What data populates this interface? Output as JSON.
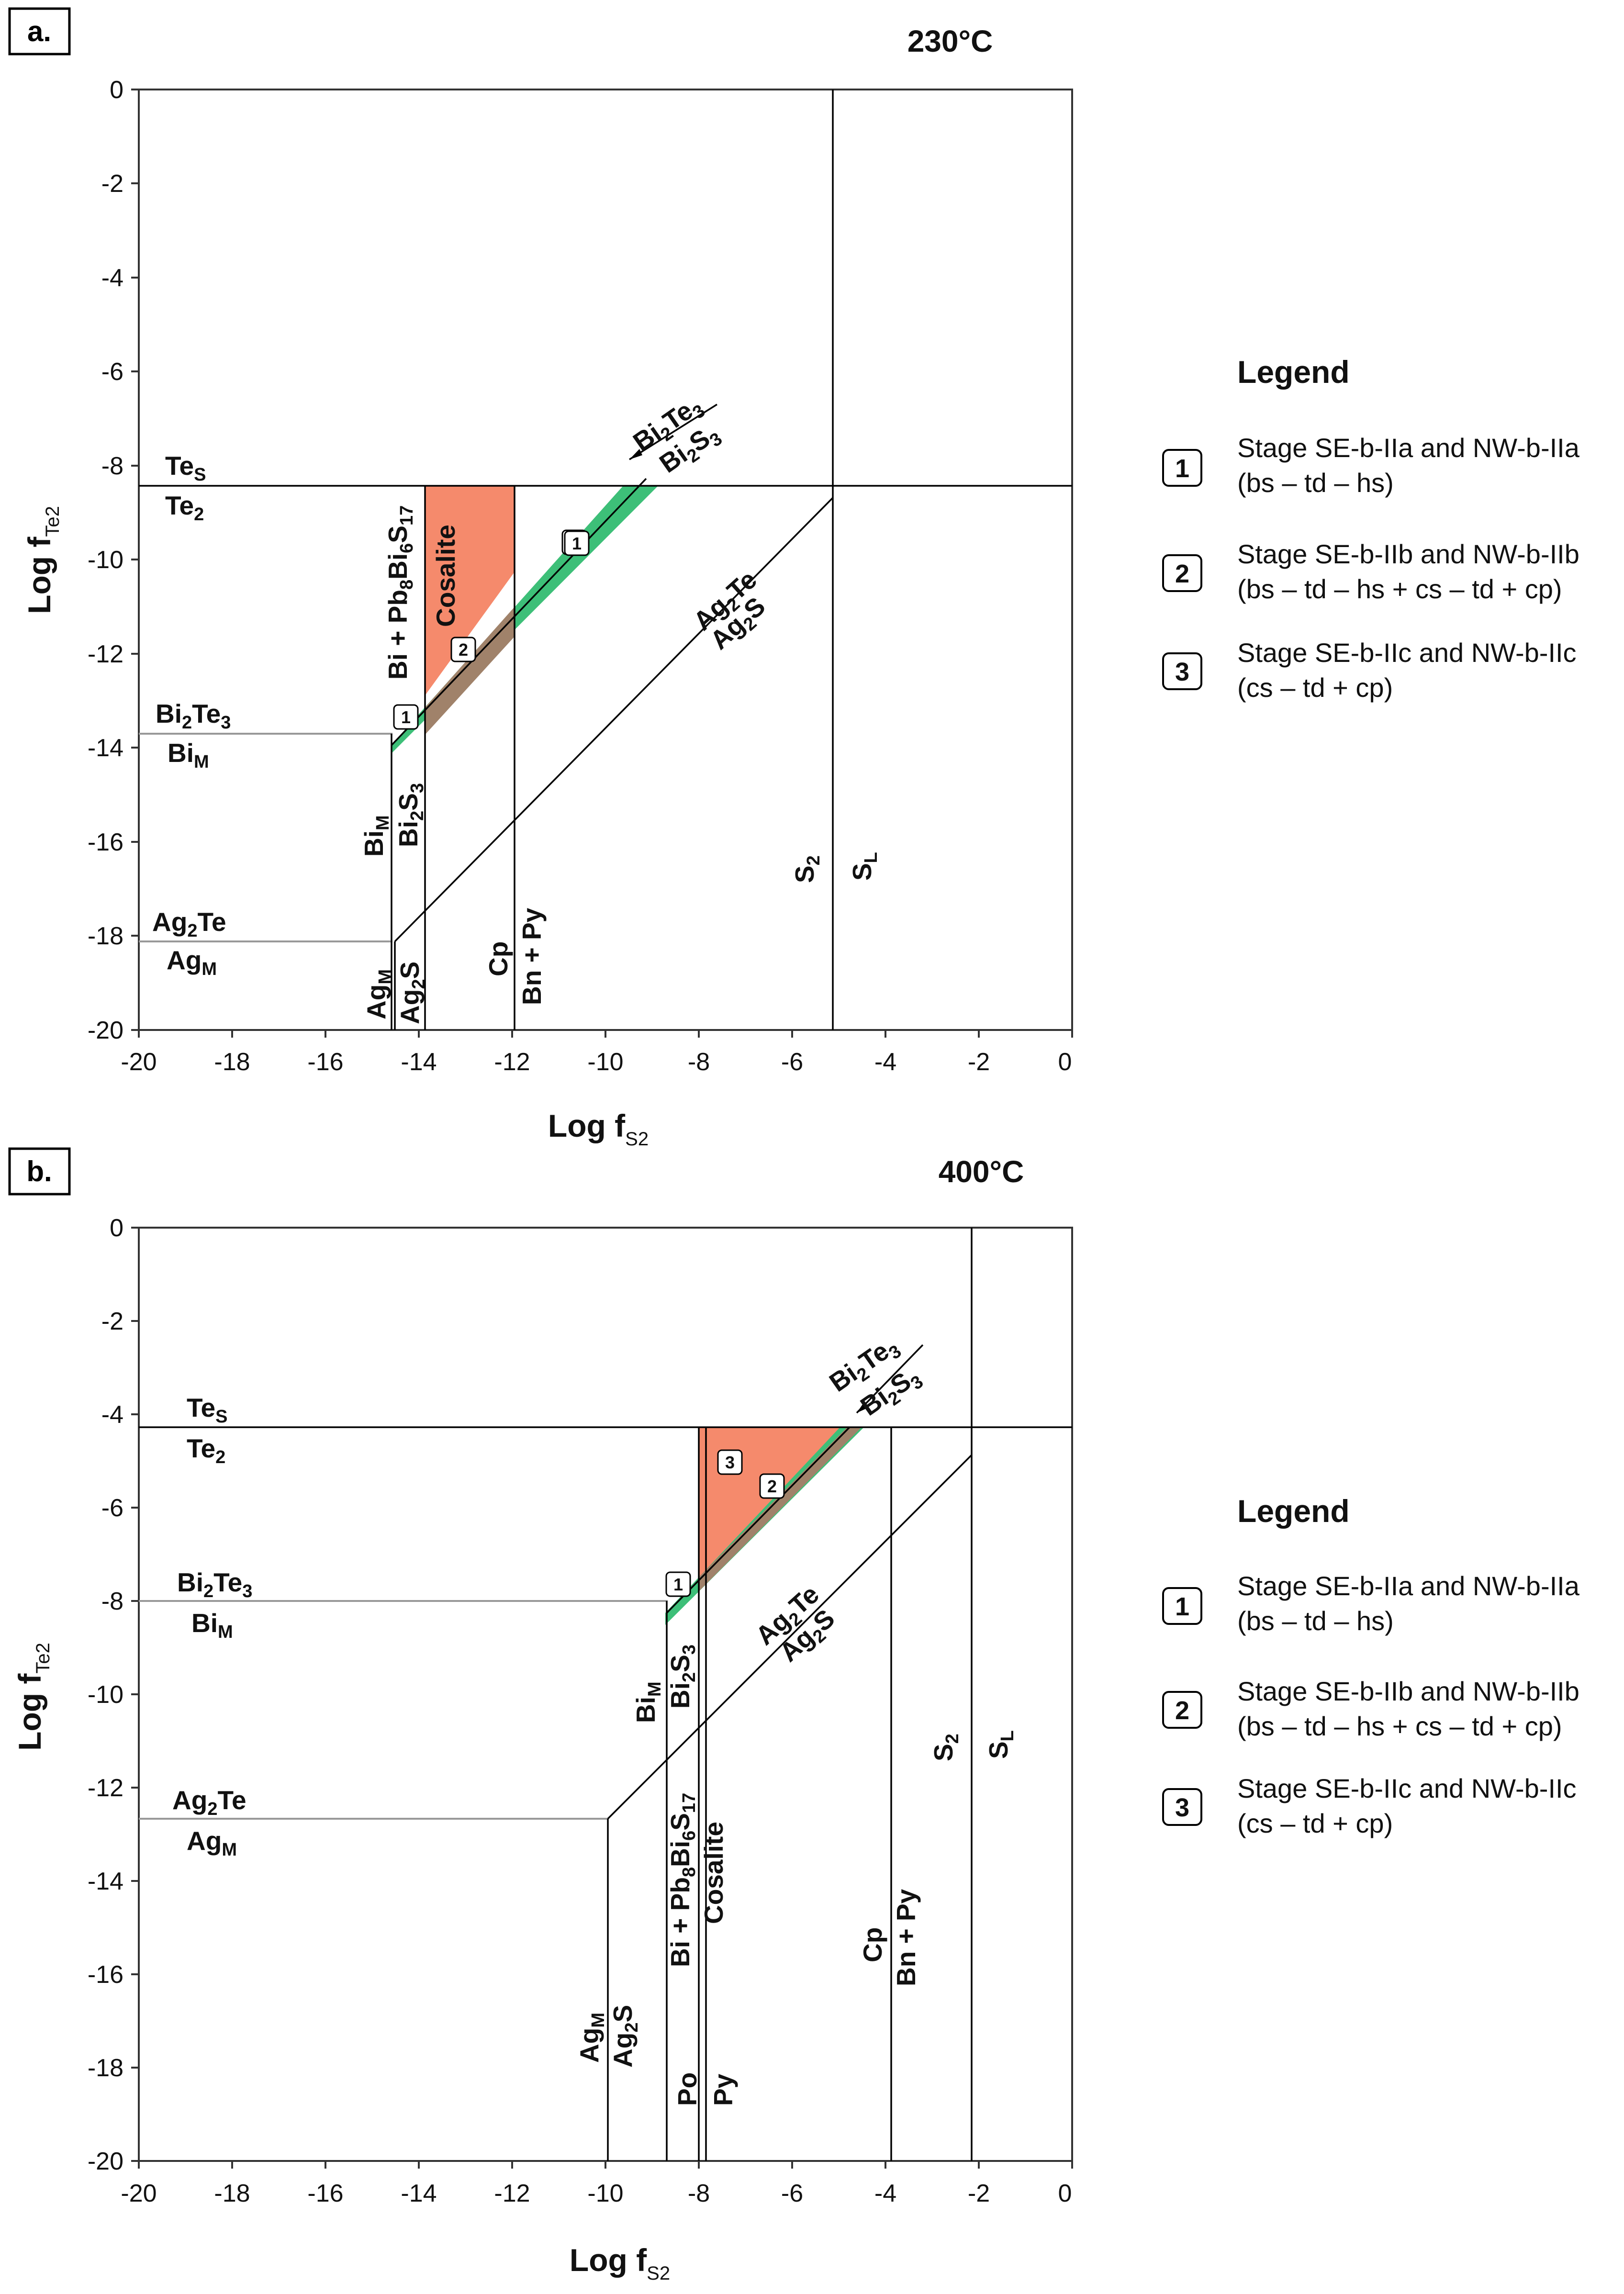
{
  "panels": [
    {
      "label": "a.",
      "temperature": "230°C",
      "x_ticks": [
        "-20",
        "-18",
        "-16",
        "-14",
        "-12",
        "-10",
        "-8",
        "-6",
        "-4",
        "-2",
        "0"
      ],
      "y_ticks": [
        "0",
        "-2",
        "-4",
        "-6",
        "-8",
        "-10",
        "-12",
        "-14",
        "-16",
        "-18",
        "-20"
      ],
      "xlabel": "Log f",
      "xlabel_sub": "S2",
      "ylabel": "Log f",
      "ylabel_sub": "Te2",
      "field_label": "Cosalite",
      "legend": {
        "title": "Legend",
        "items": [
          {
            "num": "1",
            "line1": "Stage SE-b-IIa and NW-b-IIa",
            "line2": "(bs – td – hs)"
          },
          {
            "num": "2",
            "line1": "Stage SE-b-IIb and NW-b-IIb",
            "line2": "(bs – td – hs + cs – td + cp)"
          },
          {
            "num": "3",
            "line1": "Stage SE-b-IIc and NW-b-IIc",
            "line2": "(cs – td + cp)"
          }
        ]
      }
    },
    {
      "label": "b.",
      "temperature": "400°C",
      "x_ticks": [
        "-20",
        "-18",
        "-16",
        "-14",
        "-12",
        "-10",
        "-8",
        "-6",
        "-4",
        "-2",
        "0"
      ],
      "y_ticks": [
        "0",
        "-2",
        "-4",
        "-6",
        "-8",
        "-10",
        "-12",
        "-14",
        "-16",
        "-18",
        "-20"
      ],
      "xlabel": "Log f",
      "xlabel_sub": "S2",
      "ylabel": "Log f",
      "ylabel_sub": "Te2",
      "field_label": "Cosalite",
      "legend": {
        "title": "Legend",
        "items": [
          {
            "num": "1",
            "line1": "Stage SE-b-IIa and NW-b-IIa",
            "line2": "(bs – td – hs)"
          },
          {
            "num": "2",
            "line1": "Stage SE-b-IIb and NW-b-IIb",
            "line2": "(bs – td – hs + cs – td + cp)"
          },
          {
            "num": "3",
            "line1": "Stage SE-b-IIc and NW-b-IIc",
            "line2": "(cs – td + cp)"
          }
        ]
      }
    }
  ],
  "colors": {
    "cosalite_field": "#f58a6c",
    "stage1_band": "#3dbf78",
    "overlap": "#a0826a"
  }
}
